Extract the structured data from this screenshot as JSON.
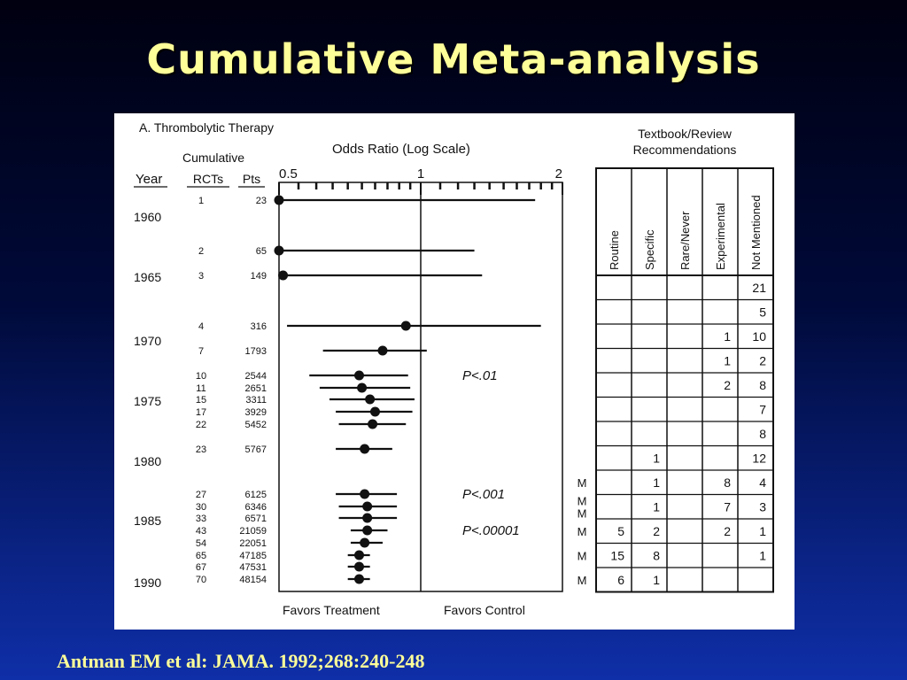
{
  "slide": {
    "title": "Cumulative Meta-analysis",
    "citation": "Antman EM et al: JAMA. 1992;268:240-248",
    "title_color": "#ffff99",
    "background_top": "#000010",
    "background_bottom": "#0f2fa8"
  },
  "chart_data": [
    {
      "type": "forest",
      "panel_label": "A.  Thrombolytic Therapy",
      "axis_title": "Odds Ratio (Log Scale)",
      "x_scale": "log",
      "xlim": [
        0.5,
        2
      ],
      "x_ticks": [
        "0.5",
        "1",
        "2"
      ],
      "x_label_left": "Favors Treatment",
      "x_label_right": "Favors Control",
      "column_headers": {
        "year": "Year",
        "cumulative": "Cumulative",
        "rcts": "RCTs",
        "pts": "Pts"
      },
      "year_labels": [
        "1960",
        "1965",
        "1970",
        "1975",
        "1980",
        "1985",
        "1990"
      ],
      "rows": [
        {
          "rcts": "1",
          "pts": "23",
          "or": 0.5,
          "lo": 0.5,
          "hi": 1.75
        },
        {
          "rcts": "2",
          "pts": "65",
          "or": 0.5,
          "lo": 0.5,
          "hi": 1.3
        },
        {
          "rcts": "3",
          "pts": "149",
          "or": 0.51,
          "lo": 0.5,
          "hi": 1.35
        },
        {
          "rcts": "4",
          "pts": "316",
          "or": 0.93,
          "lo": 0.52,
          "hi": 1.8
        },
        {
          "rcts": "7",
          "pts": "1793",
          "or": 0.83,
          "lo": 0.62,
          "hi": 1.03
        },
        {
          "rcts": "10",
          "pts": "2544",
          "or": 0.74,
          "lo": 0.58,
          "hi": 0.94
        },
        {
          "rcts": "11",
          "pts": "2651",
          "or": 0.75,
          "lo": 0.61,
          "hi": 0.95
        },
        {
          "rcts": "15",
          "pts": "3311",
          "or": 0.78,
          "lo": 0.64,
          "hi": 0.97
        },
        {
          "rcts": "17",
          "pts": "3929",
          "or": 0.8,
          "lo": 0.66,
          "hi": 0.96
        },
        {
          "rcts": "22",
          "pts": "5452",
          "or": 0.79,
          "lo": 0.67,
          "hi": 0.93
        },
        {
          "rcts": "23",
          "pts": "5767",
          "or": 0.76,
          "lo": 0.66,
          "hi": 0.87
        },
        {
          "rcts": "27",
          "pts": "6125",
          "or": 0.76,
          "lo": 0.66,
          "hi": 0.89
        },
        {
          "rcts": "30",
          "pts": "6346",
          "or": 0.77,
          "lo": 0.67,
          "hi": 0.89
        },
        {
          "rcts": "33",
          "pts": "6571",
          "or": 0.77,
          "lo": 0.67,
          "hi": 0.89
        },
        {
          "rcts": "43",
          "pts": "21059",
          "or": 0.77,
          "lo": 0.71,
          "hi": 0.85
        },
        {
          "rcts": "54",
          "pts": "22051",
          "or": 0.76,
          "lo": 0.71,
          "hi": 0.83
        },
        {
          "rcts": "65",
          "pts": "47185",
          "or": 0.74,
          "lo": 0.7,
          "hi": 0.78
        },
        {
          "rcts": "67",
          "pts": "47531",
          "or": 0.74,
          "lo": 0.7,
          "hi": 0.78
        },
        {
          "rcts": "70",
          "pts": "48154",
          "or": 0.74,
          "lo": 0.7,
          "hi": 0.78
        }
      ],
      "p_values": [
        {
          "label": "P<.01",
          "row": "10"
        },
        {
          "label": "P<.001",
          "row": "27"
        },
        {
          "label": "P<.00001",
          "row": "43"
        }
      ]
    },
    {
      "type": "table",
      "title_line1": "Textbook/Review",
      "title_line2": "Recommendations",
      "columns": [
        "Routine",
        "Specific",
        "Rare/Never",
        "Experimental",
        "Not Mentioned"
      ],
      "rows": [
        {
          "marker": "",
          "cells": [
            "",
            "",
            "",
            "",
            "21"
          ]
        },
        {
          "marker": "",
          "cells": [
            "",
            "",
            "",
            "",
            "5"
          ]
        },
        {
          "marker": "",
          "cells": [
            "",
            "",
            "",
            "1",
            "10"
          ]
        },
        {
          "marker": "",
          "cells": [
            "",
            "",
            "",
            "1",
            "2"
          ]
        },
        {
          "marker": "",
          "cells": [
            "",
            "",
            "",
            "2",
            "8"
          ]
        },
        {
          "marker": "",
          "cells": [
            "",
            "",
            "",
            "",
            "7"
          ]
        },
        {
          "marker": "",
          "cells": [
            "",
            "",
            "",
            "",
            "8"
          ]
        },
        {
          "marker": "",
          "cells": [
            "",
            "1",
            "",
            "",
            "12"
          ]
        },
        {
          "marker": "M",
          "cells": [
            "",
            "1",
            "",
            "8",
            "4"
          ]
        },
        {
          "marker": "MM",
          "cells": [
            "",
            "1",
            "",
            "7",
            "3"
          ]
        },
        {
          "marker": "M",
          "cells": [
            "5",
            "2",
            "",
            "2",
            "1"
          ]
        },
        {
          "marker": "M",
          "cells": [
            "15",
            "8",
            "",
            "",
            "1"
          ]
        },
        {
          "marker": "M",
          "cells": [
            "6",
            "1",
            "",
            "",
            ""
          ]
        }
      ]
    }
  ]
}
